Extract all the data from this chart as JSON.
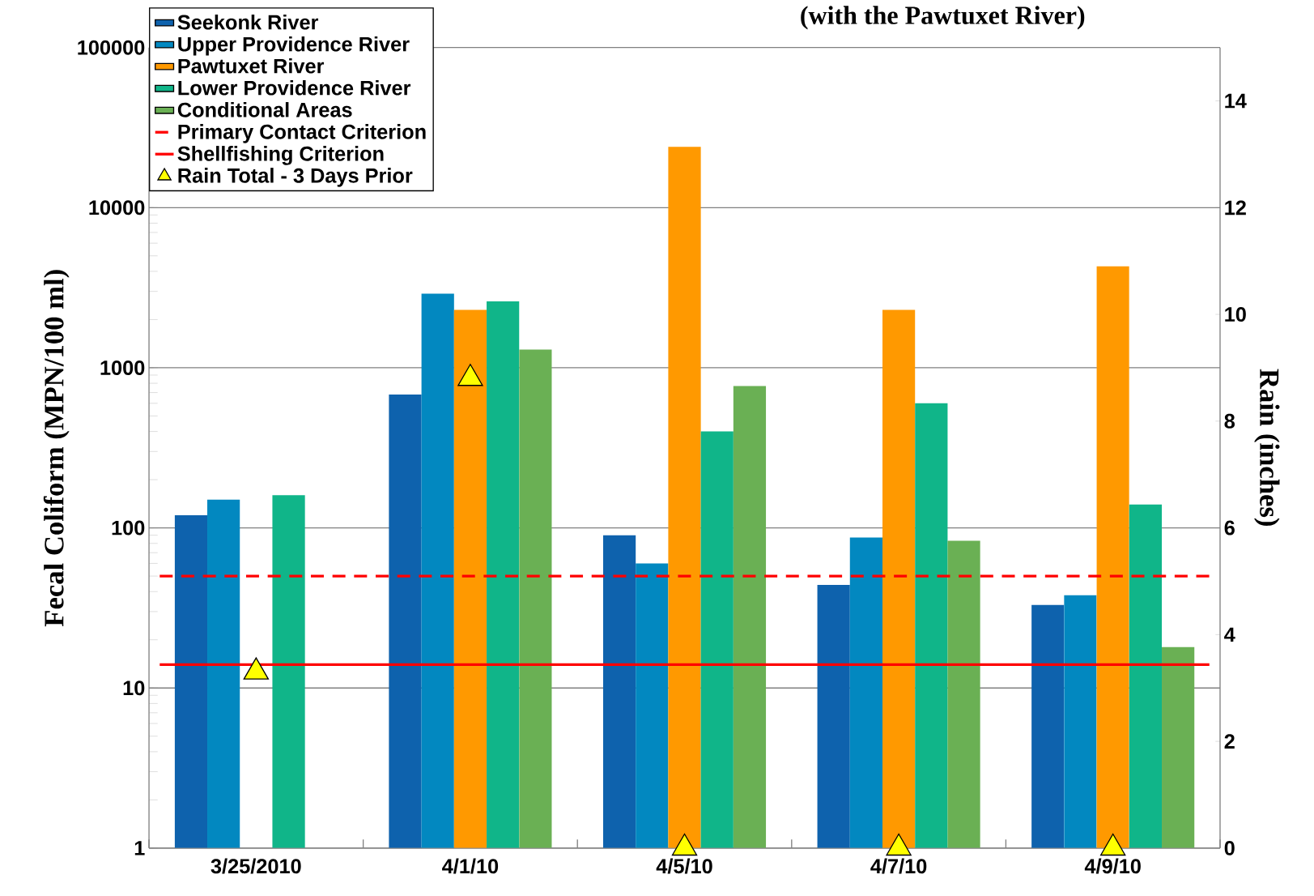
{
  "chart_data": {
    "type": "bar",
    "title": "(with the Pawtuxet River)",
    "ylabel": "Fecal Coliform (MPN/100 ml)",
    "y2label": "Rain (inches)",
    "categories": [
      "3/25/2010",
      "4/1/10",
      "4/5/10",
      "4/7/10",
      "4/9/10"
    ],
    "series": [
      {
        "name": "Seekonk River",
        "color": "#0e62ad",
        "values": [
          120,
          680,
          90,
          44,
          33
        ]
      },
      {
        "name": "Upper Providence River",
        "color": "#0288c0",
        "values": [
          150,
          2900,
          60,
          87,
          38
        ]
      },
      {
        "name": "Pawtuxet River",
        "color": "#ff9900",
        "values": [
          null,
          2300,
          24000,
          2300,
          4300
        ]
      },
      {
        "name": "Lower Providence River",
        "color": "#10b589",
        "values": [
          160,
          2600,
          400,
          600,
          140
        ]
      },
      {
        "name": "Conditional Areas",
        "color": "#6ab054",
        "values": [
          null,
          1300,
          770,
          83,
          18
        ]
      },
      {
        "name": "Rain Total - 3 Days Prior",
        "type": "scatter",
        "axis": "y2",
        "marker": "triangle",
        "color": "#ffff00",
        "values": [
          3.3,
          8.8,
          0,
          0,
          0
        ]
      }
    ],
    "ref_lines": [
      {
        "axis": "y",
        "value": 50,
        "label": "Primary Contact Criterion",
        "color": "#ff0000",
        "line_style": "dashed"
      },
      {
        "axis": "y",
        "value": 14,
        "label": "Shellfishing Criterion",
        "color": "#ff0000",
        "line_style": "solid"
      }
    ],
    "log": "y",
    "ylim": [
      1,
      100000
    ],
    "yticks": [
      1,
      10,
      100,
      1000,
      10000,
      100000
    ],
    "y2lim": [
      0,
      15
    ],
    "y2ticks": [
      0,
      2,
      4,
      6,
      8,
      10,
      12,
      14
    ],
    "grid": "y",
    "legend": "top left"
  }
}
